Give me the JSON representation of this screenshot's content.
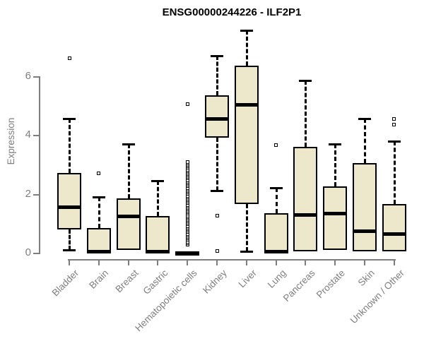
{
  "colors": {
    "background": "#FFFFFF",
    "box_fill": "#EDE7CC",
    "box_border": "#000000",
    "median": "#000000",
    "whisker": "#000000",
    "axis": "#7E7E7E",
    "label": "#7E7E7E",
    "title": "#000000"
  },
  "chart_data": {
    "type": "boxplot",
    "title": "ENSG00000244226 - ILF2P1",
    "xlabel": "",
    "ylabel": "Expression",
    "yticks": [
      0,
      2,
      4,
      6
    ],
    "ylim": [
      0,
      7.8
    ],
    "grid": false,
    "legend": "none",
    "categories": [
      "Bladder",
      "Brain",
      "Breast",
      "Gastric",
      "Hematopoietic cells",
      "Kidney",
      "Liver",
      "Lung",
      "Pancreas",
      "Prostate",
      "Skin",
      "Unknown / Other"
    ],
    "series": [
      {
        "name": "Bladder",
        "whisker_low": 0.1,
        "q1": 0.8,
        "median": 1.55,
        "q3": 2.7,
        "whisker_high": 4.55,
        "outliers": [
          6.6
        ]
      },
      {
        "name": "Brain",
        "whisker_low": 0.0,
        "q1": 0.0,
        "median": 0.05,
        "q3": 0.85,
        "whisker_high": 1.9,
        "outliers": [
          2.7
        ]
      },
      {
        "name": "Breast",
        "whisker_low": 0.1,
        "q1": 0.1,
        "median": 1.25,
        "q3": 1.85,
        "whisker_high": 3.7,
        "outliers": []
      },
      {
        "name": "Gastric",
        "whisker_low": 0.0,
        "q1": 0.0,
        "median": 0.05,
        "q3": 1.25,
        "whisker_high": 2.45,
        "outliers": []
      },
      {
        "name": "Hematopoietic cells",
        "whisker_low": 0.0,
        "q1": 0.0,
        "median": 0.0,
        "q3": 0.0,
        "whisker_high": 0.0,
        "outliers": [
          0.28,
          0.33,
          0.38,
          0.44,
          0.49,
          0.54,
          0.59,
          0.64,
          0.7,
          0.75,
          0.8,
          0.85,
          0.9,
          0.96,
          1.01,
          1.06,
          1.11,
          1.16,
          1.22,
          1.27,
          1.32,
          1.37,
          1.42,
          1.48,
          1.53,
          1.58,
          1.63,
          1.68,
          1.74,
          1.79,
          1.84,
          1.89,
          1.94,
          2.0,
          2.05,
          2.1,
          2.15,
          2.2,
          2.26,
          2.31,
          2.36,
          2.41,
          2.46,
          2.52,
          2.57,
          2.62,
          2.67,
          2.72,
          2.78,
          2.83,
          2.88,
          2.93,
          2.98,
          3.04,
          3.09,
          5.05
        ]
      },
      {
        "name": "Kidney",
        "whisker_low": 2.1,
        "q1": 3.9,
        "median": 4.55,
        "q3": 5.35,
        "whisker_high": 6.7,
        "outliers": [
          1.25,
          0.05
        ]
      },
      {
        "name": "Liver",
        "whisker_low": 0.05,
        "q1": 1.65,
        "median": 5.05,
        "q3": 6.35,
        "whisker_high": 7.55,
        "outliers": []
      },
      {
        "name": "Lung",
        "whisker_low": 0.0,
        "q1": 0.0,
        "median": 0.05,
        "q3": 1.35,
        "whisker_high": 2.2,
        "outliers": [
          3.65
        ]
      },
      {
        "name": "Pancreas",
        "whisker_low": 0.05,
        "q1": 0.05,
        "median": 1.3,
        "q3": 3.6,
        "whisker_high": 5.85,
        "outliers": []
      },
      {
        "name": "Prostate",
        "whisker_low": 0.1,
        "q1": 0.1,
        "median": 1.35,
        "q3": 2.25,
        "whisker_high": 3.7,
        "outliers": []
      },
      {
        "name": "Skin",
        "whisker_low": 0.05,
        "q1": 0.05,
        "median": 0.75,
        "q3": 3.05,
        "whisker_high": 4.55,
        "outliers": []
      },
      {
        "name": "Unknown / Other",
        "whisker_low": 0.05,
        "q1": 0.05,
        "median": 0.65,
        "q3": 1.65,
        "whisker_high": 3.8,
        "outliers": [
          4.35,
          4.55
        ]
      }
    ]
  }
}
